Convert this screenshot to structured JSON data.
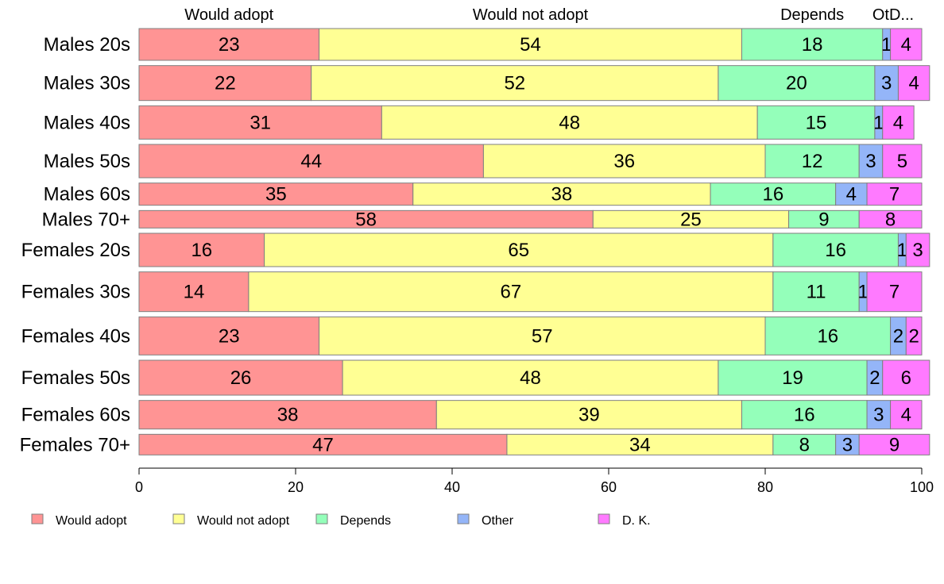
{
  "chart_data": {
    "type": "bar",
    "orientation": "horizontal",
    "stacked": true,
    "categories": [
      "Males 20s",
      "Males 30s",
      "Males 40s",
      "Males 50s",
      "Males 60s",
      "Males 70+",
      "Females 20s",
      "Females 30s",
      "Females 40s",
      "Females 50s",
      "Females 60s",
      "Females 70+"
    ],
    "bar_widths": [
      40,
      44,
      42,
      42,
      28,
      22,
      42,
      50,
      48,
      44,
      36,
      26
    ],
    "series": [
      {
        "name": "Would adopt",
        "color": "#ff9494",
        "values": [
          23,
          22,
          31,
          44,
          35,
          58,
          16,
          14,
          23,
          26,
          38,
          47
        ]
      },
      {
        "name": "Would not adopt",
        "color": "#ffff94",
        "values": [
          54,
          52,
          48,
          36,
          38,
          25,
          65,
          67,
          57,
          48,
          39,
          34
        ]
      },
      {
        "name": "Depends",
        "color": "#94ffba",
        "values": [
          18,
          20,
          15,
          12,
          16,
          9,
          16,
          11,
          16,
          19,
          16,
          8
        ]
      },
      {
        "name": "Other",
        "color": "#94b5f8",
        "values": [
          1,
          3,
          1,
          3,
          4,
          0,
          1,
          1,
          2,
          2,
          3,
          3
        ]
      },
      {
        "name": "D. K.",
        "color": "#ff7aff",
        "values": [
          4,
          4,
          4,
          5,
          7,
          8,
          3,
          7,
          2,
          6,
          4,
          9
        ]
      }
    ],
    "column_labels": [
      "Would adopt",
      "Would not adopt",
      "Depends",
      "OtD..."
    ],
    "xlim": [
      0,
      100
    ],
    "xticks": [
      "0",
      "20",
      "40",
      "60",
      "80",
      "100"
    ],
    "grid": false,
    "legend_position": "bottom"
  }
}
